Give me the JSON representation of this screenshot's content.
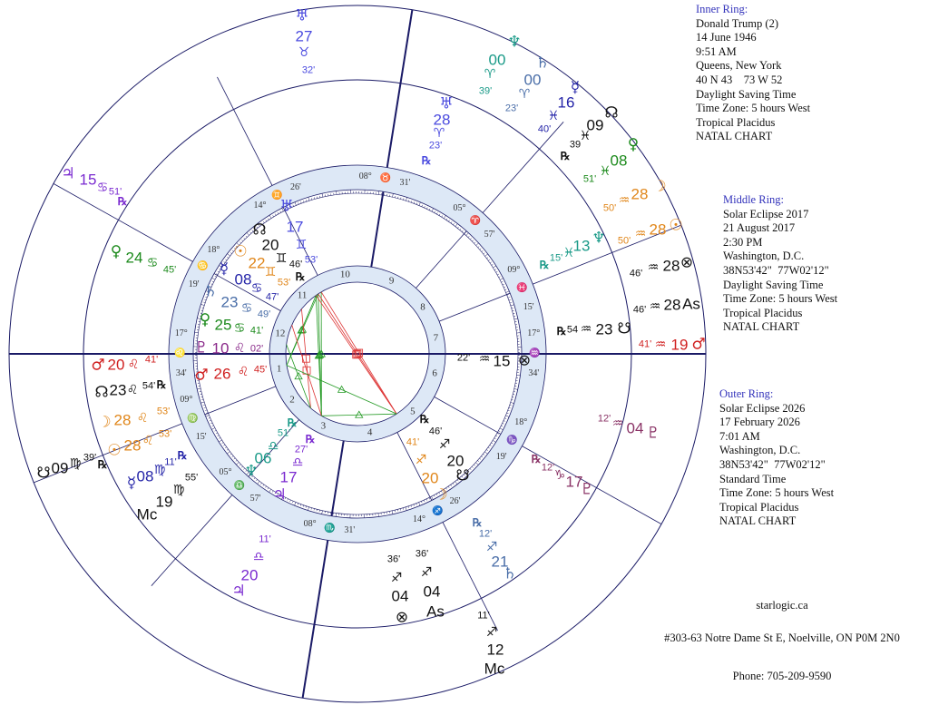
{
  "info_panels": [
    {
      "title": "Inner Ring:",
      "lines": [
        "Donald Trump (2)",
        "14 June 1946",
        "9:51 AM",
        "Queens, New York",
        "40 N 43    73 W 52",
        "Daylight Saving Time",
        "Time Zone: 5 hours West",
        "Tropical Placidus",
        "NATAL CHART"
      ]
    },
    {
      "title": "Middle Ring:",
      "lines": [
        "Solar Eclipse 2017",
        "21 August 2017",
        "2:30 PM",
        "Washington, D.C.",
        "38N53'42\"  77W02'12\"",
        "Daylight Saving Time",
        "Time Zone: 5 hours West",
        "Tropical Placidus",
        "NATAL CHART"
      ]
    },
    {
      "title": "Outer Ring:",
      "lines": [
        "Solar Eclipse 2026",
        "17 February 2026",
        "7:01 AM",
        "Washington, D.C.",
        "38N53'42\"  77W02'12\"",
        "Standard Time",
        "Time Zone: 5 hours West",
        "Tropical Placidus",
        "NATAL CHART"
      ]
    }
  ],
  "footer": {
    "site": "starlogic.ca",
    "address": "#303-63 Notre Dame St E, Noelville, ON P0M 2N0",
    "phone": "Phone: 705-209-9590"
  },
  "wheel": {
    "house_cusps": [
      {
        "house": "1",
        "deg": "17°",
        "sign": "♌",
        "min": "34'"
      },
      {
        "house": "2",
        "deg": "09°",
        "sign": "♍",
        "min": "15'"
      },
      {
        "house": "3",
        "deg": "05°",
        "sign": "♎",
        "min": "57'"
      },
      {
        "house": "4",
        "deg": "08°",
        "sign": "♏",
        "min": "31'"
      },
      {
        "house": "5",
        "deg": "14°",
        "sign": "♐",
        "min": "26'"
      },
      {
        "house": "6",
        "deg": "18°",
        "sign": "♑",
        "min": "19'"
      },
      {
        "house": "7",
        "deg": "17°",
        "sign": "♒",
        "min": "34'"
      },
      {
        "house": "8",
        "deg": "09°",
        "sign": "♓",
        "min": "15'"
      },
      {
        "house": "9",
        "deg": "05°",
        "sign": "♈",
        "min": "57'"
      },
      {
        "house": "10",
        "deg": "08°",
        "sign": "♉",
        "min": "31'"
      },
      {
        "house": "11",
        "deg": "14°",
        "sign": "♊",
        "min": "26'"
      },
      {
        "house": "12",
        "deg": "18°",
        "sign": "♋",
        "min": "19'"
      }
    ],
    "band_color": "#dde8f6",
    "line_color": "#1a1a66",
    "aspect_colors": {
      "hard": "#dd3333",
      "soft": "#229922"
    }
  },
  "placements": [
    {
      "ring": "inner",
      "body": "uranus",
      "glyph": "♅",
      "deg": "17",
      "sign": "♊",
      "min": "53'",
      "rx": "",
      "color": "#4a4adf"
    },
    {
      "ring": "inner",
      "body": "north-node",
      "glyph": "☊",
      "deg": "20",
      "sign": "♊",
      "min": "46'",
      "rx": "℞",
      "color": "#111111"
    },
    {
      "ring": "inner",
      "body": "sun",
      "glyph": "☉",
      "deg": "22",
      "sign": "♊",
      "min": "53'",
      "rx": "",
      "color": "#e0861a"
    },
    {
      "ring": "inner",
      "body": "mercury",
      "glyph": "☿",
      "deg": "08",
      "sign": "♋",
      "min": "47'",
      "rx": "",
      "color": "#2424a8"
    },
    {
      "ring": "inner",
      "body": "saturn",
      "glyph": "♄",
      "deg": "23",
      "sign": "♋",
      "min": "49'",
      "rx": "",
      "color": "#4a6ea8"
    },
    {
      "ring": "inner",
      "body": "venus",
      "glyph": "♀",
      "deg": "25",
      "sign": "♋",
      "min": "41'",
      "rx": "",
      "color": "#1c8a1c"
    },
    {
      "ring": "inner",
      "body": "pluto",
      "glyph": "♇",
      "deg": "10",
      "sign": "♌",
      "min": "02'",
      "rx": "",
      "color": "#8a2a8a"
    },
    {
      "ring": "inner",
      "body": "mars",
      "glyph": "♂",
      "deg": "26",
      "sign": "♌",
      "min": "45'",
      "rx": "",
      "color": "#d02020"
    },
    {
      "ring": "inner",
      "body": "neptune",
      "glyph": "♆",
      "deg": "06",
      "sign": "♎",
      "min": "51'",
      "rx": "℞",
      "color": "#1a9a88"
    },
    {
      "ring": "inner",
      "body": "jupiter",
      "glyph": "♃",
      "deg": "17",
      "sign": "♎",
      "min": "27'",
      "rx": "℞",
      "color": "#7a2ad0"
    },
    {
      "ring": "inner",
      "body": "moon",
      "glyph": "☽",
      "deg": "20",
      "sign": "♐",
      "min": "41'",
      "rx": "",
      "color": "#e0861a"
    },
    {
      "ring": "inner",
      "body": "south-node",
      "glyph": "☋",
      "deg": "20",
      "sign": "♐",
      "min": "46'",
      "rx": "℞",
      "color": "#111111"
    },
    {
      "ring": "inner",
      "body": "part-of-fortune",
      "glyph": "⊗",
      "deg": "15",
      "sign": "♒",
      "min": "22'",
      "rx": "",
      "color": "#111111"
    },
    {
      "ring": "middle",
      "body": "uranus",
      "glyph": "♅",
      "deg": "28",
      "sign": "♈",
      "min": "23'",
      "rx": "℞",
      "color": "#4a4adf"
    },
    {
      "ring": "middle",
      "body": "neptune",
      "glyph": "♆",
      "deg": "13",
      "sign": "♓",
      "min": "15'",
      "rx": "℞",
      "color": "#1a9a88"
    },
    {
      "ring": "middle",
      "body": "south-node",
      "glyph": "☋",
      "deg": "23",
      "sign": "♒",
      "min": "54",
      "rx": "℞",
      "color": "#111111"
    },
    {
      "ring": "middle",
      "body": "pluto",
      "glyph": "♇",
      "deg": "17",
      "sign": "♑",
      "min": "12'",
      "rx": "℞",
      "color": "#8a3366"
    },
    {
      "ring": "middle",
      "body": "saturn",
      "glyph": "♄",
      "deg": "21",
      "sign": "♐",
      "min": "12'",
      "rx": "℞",
      "color": "#4a6ea8"
    },
    {
      "ring": "middle",
      "body": "ascendant",
      "glyph": "As",
      "deg": "04",
      "sign": "♐",
      "min": "36'",
      "rx": "",
      "color": "#111111"
    },
    {
      "ring": "middle",
      "body": "part-of-fortune",
      "glyph": "⊗",
      "deg": "04",
      "sign": "♐",
      "min": "36'",
      "rx": "",
      "color": "#111111"
    },
    {
      "ring": "middle",
      "body": "jupiter",
      "glyph": "♃",
      "deg": "20",
      "sign": "♎",
      "min": "11'",
      "rx": "",
      "color": "#7a2ad0"
    },
    {
      "ring": "middle",
      "body": "midheaven",
      "glyph": "Mc",
      "deg": "19",
      "sign": "♍",
      "min": "55'",
      "rx": "",
      "color": "#111111"
    },
    {
      "ring": "middle",
      "body": "mercury",
      "glyph": "☿",
      "deg": "08",
      "sign": "♍",
      "min": "11'",
      "rx": "℞",
      "color": "#2424a8"
    },
    {
      "ring": "middle",
      "body": "sun",
      "glyph": "☉",
      "deg": "28",
      "sign": "♌",
      "min": "53'",
      "rx": "",
      "color": "#e0861a"
    },
    {
      "ring": "middle",
      "body": "moon",
      "glyph": "☽",
      "deg": "28",
      "sign": "♌",
      "min": "53'",
      "rx": "",
      "color": "#e0861a"
    },
    {
      "ring": "middle",
      "body": "north-node",
      "glyph": "☊",
      "deg": "23",
      "sign": "♌",
      "min": "54'",
      "rx": "℞",
      "color": "#111111"
    },
    {
      "ring": "middle",
      "body": "mars",
      "glyph": "♂",
      "deg": "20",
      "sign": "♌",
      "min": "41'",
      "rx": "",
      "color": "#d02020"
    },
    {
      "ring": "middle",
      "body": "venus",
      "glyph": "♀",
      "deg": "24",
      "sign": "♋",
      "min": "45'",
      "rx": "",
      "color": "#1c8a1c"
    },
    {
      "ring": "outer",
      "body": "uranus",
      "glyph": "♅",
      "deg": "27",
      "sign": "♉",
      "min": "32'",
      "rx": "",
      "color": "#4a4adf"
    },
    {
      "ring": "outer",
      "body": "neptune",
      "glyph": "♆",
      "deg": "00",
      "sign": "♈",
      "min": "39'",
      "rx": "",
      "color": "#1a9a88"
    },
    {
      "ring": "outer",
      "body": "saturn",
      "glyph": "♄",
      "deg": "00",
      "sign": "♈",
      "min": "23'",
      "rx": "",
      "color": "#4a6ea8"
    },
    {
      "ring": "outer",
      "body": "mercury",
      "glyph": "☿",
      "deg": "16",
      "sign": "♓",
      "min": "40'",
      "rx": "",
      "color": "#2424a8"
    },
    {
      "ring": "outer",
      "body": "north-node",
      "glyph": "☊",
      "deg": "09",
      "sign": "♓",
      "min": "39",
      "rx": "℞",
      "color": "#111111"
    },
    {
      "ring": "outer",
      "body": "venus",
      "glyph": "♀",
      "deg": "08",
      "sign": "♓",
      "min": "51'",
      "rx": "",
      "color": "#1c8a1c"
    },
    {
      "ring": "outer",
      "body": "moon",
      "glyph": "☽",
      "deg": "28",
      "sign": "♒",
      "min": "50'",
      "rx": "",
      "color": "#e0861a"
    },
    {
      "ring": "outer",
      "body": "sun",
      "glyph": "☉",
      "deg": "28",
      "sign": "♒",
      "min": "50'",
      "rx": "",
      "color": "#e0861a"
    },
    {
      "ring": "outer",
      "body": "part-of-fortune",
      "glyph": "⊗",
      "deg": "28",
      "sign": "♒",
      "min": "46'",
      "rx": "",
      "color": "#111111"
    },
    {
      "ring": "outer",
      "body": "ascendant",
      "glyph": "As",
      "deg": "28",
      "sign": "♒",
      "min": "46'",
      "rx": "",
      "color": "#111111"
    },
    {
      "ring": "outer",
      "body": "mars",
      "glyph": "♂",
      "deg": "19",
      "sign": "♒",
      "min": "41'",
      "rx": "",
      "color": "#d02020"
    },
    {
      "ring": "outer",
      "body": "pluto",
      "glyph": "♇",
      "deg": "04",
      "sign": "♒",
      "min": "12'",
      "rx": "",
      "color": "#8a3366"
    },
    {
      "ring": "outer",
      "body": "jupiter",
      "glyph": "♃",
      "deg": "15",
      "sign": "♋",
      "min": "51'",
      "rx": "℞",
      "color": "#7a2ad0"
    },
    {
      "ring": "outer",
      "body": "south-node",
      "glyph": "☋",
      "deg": "09",
      "sign": "♍",
      "min": "39'",
      "rx": "℞",
      "color": "#111111"
    },
    {
      "ring": "outer",
      "body": "midheaven",
      "glyph": "Mc",
      "deg": "12",
      "sign": "♐",
      "min": "11'",
      "rx": "",
      "color": "#111111"
    }
  ]
}
